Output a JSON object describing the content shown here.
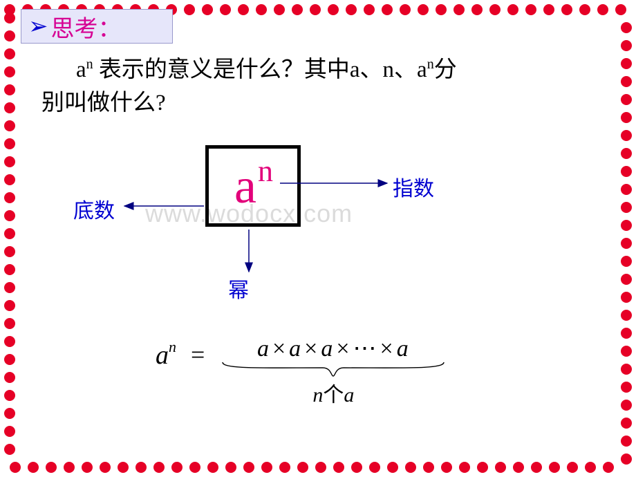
{
  "slide": {
    "background_color": "#ffffff",
    "border_dot_color": "#e60026",
    "border_dot_radius": 8,
    "border_dot_spacing": 26
  },
  "thinkBox": {
    "arrow_glyph": "➢",
    "arrow_color": "#0000d0",
    "label": "思考：",
    "label_color": "#d60093",
    "bg_color": "#e6e6fa",
    "border_color": "#9999cc"
  },
  "question": {
    "line1_prefix": "a",
    "line1_sup": "n",
    "line1_rest": " 表示的意义是什么？其中a、n、a",
    "line1_sup2": "n",
    "line1_tail": "分",
    "line2": "别叫做什么?",
    "text_color": "#000000"
  },
  "diagram": {
    "base_letter": "a",
    "exponent_letter": "n",
    "box_border_color": "#000000",
    "letter_color": "#e2007a",
    "labels": {
      "left": "底数",
      "right": "指数",
      "bottom": "幂"
    },
    "label_color": "#0000d0",
    "arrow_color": "#000080"
  },
  "watermark": {
    "text": "www.wodocx.com",
    "color": "#cccccc"
  },
  "equation": {
    "lhs_base": "a",
    "lhs_exp": "n",
    "equals": "=",
    "rhs_terms": [
      "a",
      "a",
      "a",
      "a"
    ],
    "rhs_sep": "×",
    "rhs_dots": "⋯",
    "under_n": "n",
    "under_text": "个",
    "under_a": "a",
    "text_color": "#000000"
  }
}
